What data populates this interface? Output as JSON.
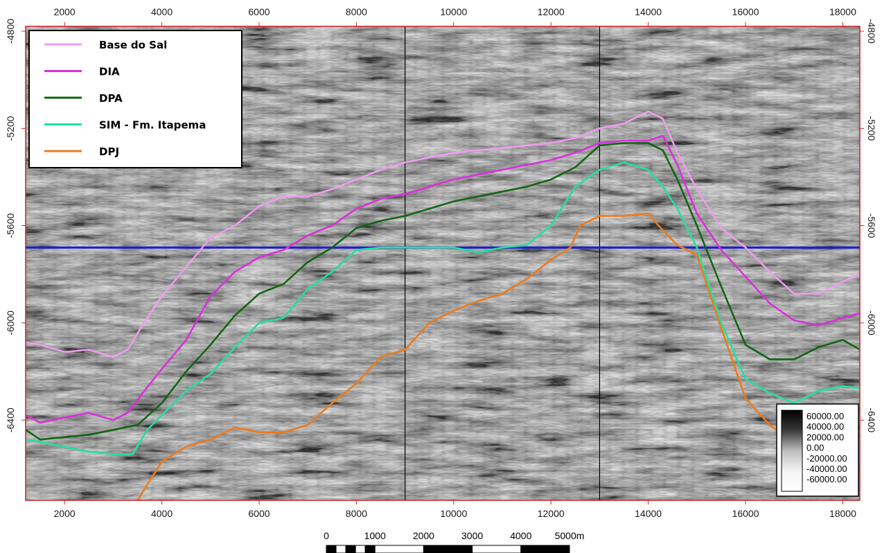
{
  "chart_data": {
    "type": "line",
    "background": "seismic amplitude section (grayscale)",
    "xlim": [
      1200,
      18350
    ],
    "ylim": [
      -4780,
      -6730
    ],
    "x_ticks": [
      2000,
      4000,
      6000,
      8000,
      10000,
      12000,
      14000,
      16000,
      18000
    ],
    "y_ticks": [
      -4800,
      -5200,
      -5600,
      -6000,
      -6400
    ],
    "x_tick_labels": [
      "2000",
      "4000",
      "6000",
      "8000",
      "10000",
      "12000",
      "14000",
      "16000",
      "18000"
    ],
    "y_tick_labels": [
      "-4800",
      "-5200",
      "-5600",
      "-6000",
      "-6400"
    ],
    "grid": false,
    "legend_position": "top-left",
    "vertical_markers": [
      9000,
      13000
    ],
    "horizontal_reference": {
      "y": -5690,
      "color": "#1a1ad6"
    },
    "series": [
      {
        "name": "Base do Sal",
        "color": "#ee9cee",
        "points": [
          [
            1200,
            -6080
          ],
          [
            1500,
            -6090
          ],
          [
            2000,
            -6120
          ],
          [
            2500,
            -6110
          ],
          [
            3000,
            -6140
          ],
          [
            3300,
            -6110
          ],
          [
            3600,
            -6010
          ],
          [
            4000,
            -5890
          ],
          [
            4500,
            -5770
          ],
          [
            5000,
            -5650
          ],
          [
            5500,
            -5600
          ],
          [
            6000,
            -5520
          ],
          [
            6500,
            -5480
          ],
          [
            7000,
            -5480
          ],
          [
            7500,
            -5450
          ],
          [
            8000,
            -5410
          ],
          [
            8500,
            -5370
          ],
          [
            9000,
            -5340
          ],
          [
            9500,
            -5320
          ],
          [
            10000,
            -5300
          ],
          [
            10500,
            -5290
          ],
          [
            11000,
            -5280
          ],
          [
            11500,
            -5270
          ],
          [
            12000,
            -5260
          ],
          [
            12500,
            -5240
          ],
          [
            13000,
            -5200
          ],
          [
            13500,
            -5180
          ],
          [
            14000,
            -5130
          ],
          [
            14300,
            -5160
          ],
          [
            14600,
            -5300
          ],
          [
            15000,
            -5450
          ],
          [
            15500,
            -5610
          ],
          [
            16000,
            -5690
          ],
          [
            16500,
            -5790
          ],
          [
            17000,
            -5880
          ],
          [
            17500,
            -5880
          ],
          [
            18000,
            -5830
          ],
          [
            18350,
            -5800
          ]
        ]
      },
      {
        "name": "DIA",
        "color": "#dd2fdd",
        "points": [
          [
            1200,
            -6380
          ],
          [
            1500,
            -6410
          ],
          [
            2000,
            -6390
          ],
          [
            2500,
            -6370
          ],
          [
            3000,
            -6400
          ],
          [
            3300,
            -6370
          ],
          [
            3600,
            -6290
          ],
          [
            4000,
            -6190
          ],
          [
            4500,
            -6070
          ],
          [
            5000,
            -5890
          ],
          [
            5500,
            -5790
          ],
          [
            6000,
            -5730
          ],
          [
            6500,
            -5700
          ],
          [
            7000,
            -5640
          ],
          [
            7500,
            -5600
          ],
          [
            8000,
            -5530
          ],
          [
            8500,
            -5490
          ],
          [
            9000,
            -5470
          ],
          [
            9500,
            -5440
          ],
          [
            10000,
            -5410
          ],
          [
            10500,
            -5390
          ],
          [
            11000,
            -5370
          ],
          [
            11500,
            -5350
          ],
          [
            12000,
            -5330
          ],
          [
            12500,
            -5300
          ],
          [
            13000,
            -5260
          ],
          [
            13500,
            -5250
          ],
          [
            14000,
            -5250
          ],
          [
            14300,
            -5230
          ],
          [
            14600,
            -5350
          ],
          [
            15000,
            -5550
          ],
          [
            15500,
            -5700
          ],
          [
            16000,
            -5810
          ],
          [
            16500,
            -5920
          ],
          [
            17000,
            -5990
          ],
          [
            17500,
            -6010
          ],
          [
            18000,
            -5980
          ],
          [
            18350,
            -5960
          ]
        ]
      },
      {
        "name": "DPA",
        "color": "#116611",
        "points": [
          [
            1200,
            -6440
          ],
          [
            1500,
            -6480
          ],
          [
            2000,
            -6470
          ],
          [
            2500,
            -6460
          ],
          [
            3000,
            -6440
          ],
          [
            3500,
            -6420
          ],
          [
            4000,
            -6330
          ],
          [
            4500,
            -6200
          ],
          [
            5000,
            -6090
          ],
          [
            5500,
            -5970
          ],
          [
            6000,
            -5880
          ],
          [
            6500,
            -5840
          ],
          [
            7000,
            -5750
          ],
          [
            7500,
            -5690
          ],
          [
            8000,
            -5610
          ],
          [
            8500,
            -5580
          ],
          [
            9000,
            -5560
          ],
          [
            9500,
            -5530
          ],
          [
            10000,
            -5500
          ],
          [
            10500,
            -5480
          ],
          [
            11000,
            -5460
          ],
          [
            11500,
            -5440
          ],
          [
            12000,
            -5410
          ],
          [
            12500,
            -5360
          ],
          [
            13000,
            -5270
          ],
          [
            13500,
            -5260
          ],
          [
            14000,
            -5260
          ],
          [
            14300,
            -5290
          ],
          [
            14600,
            -5410
          ],
          [
            15000,
            -5600
          ],
          [
            15500,
            -5850
          ],
          [
            16000,
            -6090
          ],
          [
            16500,
            -6150
          ],
          [
            17000,
            -6150
          ],
          [
            17500,
            -6100
          ],
          [
            18000,
            -6070
          ],
          [
            18350,
            -6110
          ]
        ]
      },
      {
        "name": "SIM -  Fm. Itapema",
        "color": "#22e0a0",
        "points": [
          [
            1200,
            -6480
          ],
          [
            1500,
            -6490
          ],
          [
            2000,
            -6510
          ],
          [
            2500,
            -6530
          ],
          [
            3000,
            -6540
          ],
          [
            3400,
            -6540
          ],
          [
            3700,
            -6440
          ],
          [
            4000,
            -6380
          ],
          [
            4500,
            -6280
          ],
          [
            5000,
            -6210
          ],
          [
            5500,
            -6100
          ],
          [
            6000,
            -6000
          ],
          [
            6500,
            -5980
          ],
          [
            7000,
            -5860
          ],
          [
            7500,
            -5790
          ],
          [
            8000,
            -5700
          ],
          [
            8500,
            -5690
          ],
          [
            9000,
            -5690
          ],
          [
            9500,
            -5690
          ],
          [
            10000,
            -5690
          ],
          [
            10500,
            -5710
          ],
          [
            11000,
            -5690
          ],
          [
            11500,
            -5680
          ],
          [
            12000,
            -5600
          ],
          [
            12500,
            -5440
          ],
          [
            13000,
            -5370
          ],
          [
            13500,
            -5340
          ],
          [
            14000,
            -5370
          ],
          [
            14300,
            -5440
          ],
          [
            14600,
            -5530
          ],
          [
            15000,
            -5690
          ],
          [
            15500,
            -6000
          ],
          [
            16000,
            -6230
          ],
          [
            16500,
            -6290
          ],
          [
            17000,
            -6330
          ],
          [
            17500,
            -6280
          ],
          [
            18000,
            -6260
          ],
          [
            18350,
            -6270
          ]
        ]
      },
      {
        "name": "DPJ",
        "color": "#ee7b1a",
        "points": [
          [
            3500,
            -6730
          ],
          [
            4000,
            -6570
          ],
          [
            4500,
            -6510
          ],
          [
            5000,
            -6480
          ],
          [
            5500,
            -6430
          ],
          [
            6000,
            -6450
          ],
          [
            6500,
            -6450
          ],
          [
            7000,
            -6420
          ],
          [
            7500,
            -6330
          ],
          [
            8000,
            -6250
          ],
          [
            8500,
            -6140
          ],
          [
            9000,
            -6110
          ],
          [
            9500,
            -6000
          ],
          [
            10000,
            -5950
          ],
          [
            10500,
            -5910
          ],
          [
            11000,
            -5880
          ],
          [
            11500,
            -5820
          ],
          [
            12000,
            -5740
          ],
          [
            12400,
            -5690
          ],
          [
            12600,
            -5600
          ],
          [
            13000,
            -5560
          ],
          [
            13500,
            -5560
          ],
          [
            14000,
            -5550
          ],
          [
            14300,
            -5620
          ],
          [
            14600,
            -5680
          ],
          [
            15000,
            -5720
          ],
          [
            15500,
            -6020
          ],
          [
            16000,
            -6310
          ],
          [
            16500,
            -6420
          ],
          [
            17000,
            -6500
          ],
          [
            17500,
            -6560
          ],
          [
            18000,
            -6590
          ],
          [
            18350,
            -6610
          ]
        ]
      }
    ]
  },
  "legend": {
    "items": [
      {
        "label": "Base do Sal",
        "color": "#ee9cee"
      },
      {
        "label": "DIA",
        "color": "#dd2fdd"
      },
      {
        "label": "DPA",
        "color": "#116611"
      },
      {
        "label": "SIM -  Fm. Itapema",
        "color": "#22e0a0"
      },
      {
        "label": "DPJ",
        "color": "#ee7b1a"
      }
    ]
  },
  "colorbar": {
    "labels": [
      "60000.00",
      "40000.00",
      "20000.00",
      "0.00",
      "-20000.00",
      "-40000.00",
      "-60000.00"
    ]
  },
  "scalebar": {
    "labels": [
      "0",
      "1000",
      "2000",
      "3000",
      "4000",
      "5000m"
    ]
  }
}
